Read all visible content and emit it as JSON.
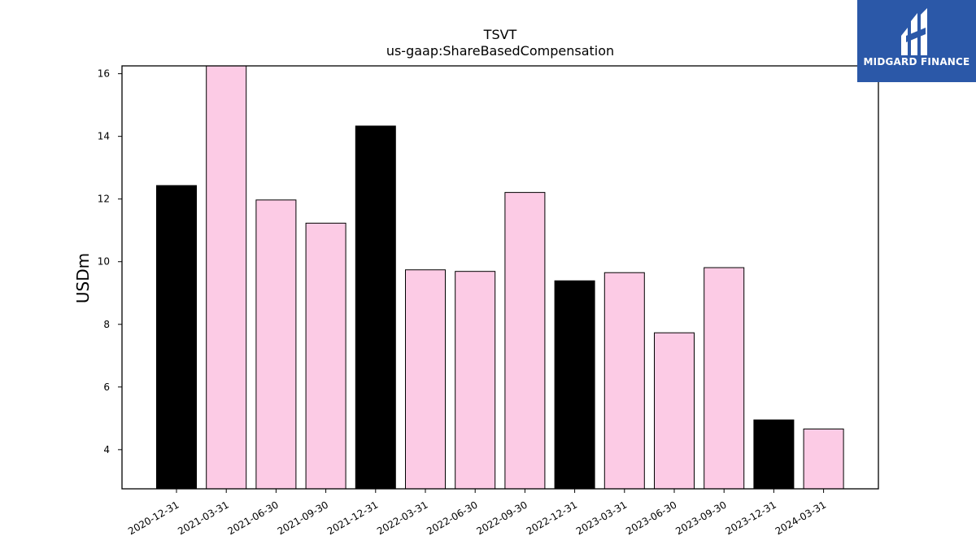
{
  "brand": {
    "name": "MIDGARD FINANCE",
    "bg_color": "#2b58a8"
  },
  "chart_data": {
    "type": "bar",
    "title": "TSVT",
    "subtitle": "us-gaap:ShareBasedCompensation",
    "xlabel": "",
    "ylabel": "USDm",
    "ylim": [
      2.75,
      16.25
    ],
    "yticks": [
      4,
      6,
      8,
      10,
      12,
      14,
      16
    ],
    "grid": false,
    "categories": [
      "2020-12-31",
      "2021-03-31",
      "2021-06-30",
      "2021-09-30",
      "2021-12-31",
      "2022-03-31",
      "2022-06-30",
      "2022-09-30",
      "2022-12-31",
      "2023-03-31",
      "2023-06-30",
      "2023-09-30",
      "2023-12-31",
      "2024-03-31"
    ],
    "values": [
      12.43,
      16.3,
      11.97,
      11.23,
      14.33,
      9.74,
      9.69,
      12.21,
      9.39,
      9.65,
      7.73,
      9.81,
      4.95,
      4.66
    ],
    "colors": [
      "#000000",
      "#fccbe5",
      "#fccbe5",
      "#fccbe5",
      "#000000",
      "#fccbe5",
      "#fccbe5",
      "#fccbe5",
      "#000000",
      "#fccbe5",
      "#fccbe5",
      "#fccbe5",
      "#000000",
      "#fccbe5"
    ]
  }
}
